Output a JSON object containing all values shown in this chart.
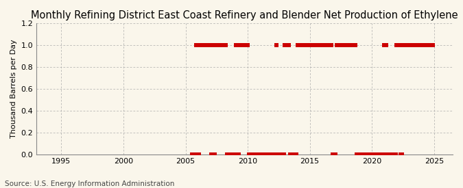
{
  "title": "Monthly Refining District East Coast Refinery and Blender Net Production of Ethylene",
  "ylabel": "Thousand Barrels per Day",
  "source": "Source: U.S. Energy Information Administration",
  "background_color": "#faf6eb",
  "line_color": "#cc0000",
  "grid_color": "#aaaaaa",
  "xlim": [
    1993.0,
    2026.5
  ],
  "ylim": [
    0.0,
    1.2
  ],
  "yticks": [
    0.0,
    0.2,
    0.4,
    0.6,
    0.8,
    1.0,
    1.2
  ],
  "xticks": [
    1995,
    2000,
    2005,
    2010,
    2015,
    2020,
    2025
  ],
  "title_fontsize": 10.5,
  "ylabel_fontsize": 8,
  "source_fontsize": 7.5,
  "tick_fontsize": 8,
  "data_points": [
    [
      2005.5,
      0
    ],
    [
      2005.58,
      0
    ],
    [
      2005.67,
      0
    ],
    [
      2005.75,
      0
    ],
    [
      2005.83,
      1
    ],
    [
      2005.92,
      1
    ],
    [
      2006.0,
      1
    ],
    [
      2006.08,
      0
    ],
    [
      2006.17,
      1
    ],
    [
      2006.25,
      1
    ],
    [
      2006.33,
      1
    ],
    [
      2006.42,
      1
    ],
    [
      2006.5,
      1
    ],
    [
      2006.58,
      1
    ],
    [
      2006.67,
      1
    ],
    [
      2006.75,
      1
    ],
    [
      2006.83,
      1
    ],
    [
      2006.92,
      1
    ],
    [
      2007.0,
      1
    ],
    [
      2007.08,
      0
    ],
    [
      2007.17,
      1
    ],
    [
      2007.25,
      1
    ],
    [
      2007.33,
      0
    ],
    [
      2007.42,
      1
    ],
    [
      2007.5,
      1
    ],
    [
      2007.58,
      1
    ],
    [
      2007.67,
      1
    ],
    [
      2007.75,
      1
    ],
    [
      2007.83,
      1
    ],
    [
      2007.92,
      1
    ],
    [
      2008.0,
      1
    ],
    [
      2008.08,
      1
    ],
    [
      2008.17,
      1
    ],
    [
      2008.25,
      1
    ],
    [
      2008.33,
      0
    ],
    [
      2008.42,
      0
    ],
    [
      2008.5,
      0
    ],
    [
      2008.58,
      0
    ],
    [
      2008.67,
      0
    ],
    [
      2008.75,
      0
    ],
    [
      2008.83,
      0
    ],
    [
      2008.92,
      0
    ],
    [
      2009.0,
      0
    ],
    [
      2009.08,
      1
    ],
    [
      2009.17,
      1
    ],
    [
      2009.25,
      0
    ],
    [
      2009.33,
      1
    ],
    [
      2009.42,
      1
    ],
    [
      2009.5,
      1
    ],
    [
      2009.58,
      1
    ],
    [
      2009.67,
      1
    ],
    [
      2009.75,
      1
    ],
    [
      2009.83,
      1
    ],
    [
      2009.92,
      1
    ],
    [
      2010.0,
      1
    ],
    [
      2010.08,
      0
    ],
    [
      2010.17,
      0
    ],
    [
      2010.25,
      0
    ],
    [
      2010.33,
      0
    ],
    [
      2010.42,
      0
    ],
    [
      2010.5,
      0
    ],
    [
      2010.58,
      0
    ],
    [
      2010.67,
      0
    ],
    [
      2010.75,
      0
    ],
    [
      2010.83,
      0
    ],
    [
      2010.92,
      0
    ],
    [
      2011.0,
      0
    ],
    [
      2011.08,
      0
    ],
    [
      2011.17,
      0
    ],
    [
      2011.25,
      0
    ],
    [
      2011.33,
      0
    ],
    [
      2011.42,
      0
    ],
    [
      2011.5,
      0
    ],
    [
      2011.58,
      0
    ],
    [
      2011.67,
      0
    ],
    [
      2011.75,
      0
    ],
    [
      2011.83,
      0
    ],
    [
      2011.92,
      0
    ],
    [
      2012.0,
      0
    ],
    [
      2012.08,
      0
    ],
    [
      2012.17,
      0
    ],
    [
      2012.25,
      0
    ],
    [
      2012.33,
      1
    ],
    [
      2012.42,
      0
    ],
    [
      2012.5,
      0
    ],
    [
      2012.58,
      0
    ],
    [
      2012.67,
      0
    ],
    [
      2012.75,
      0
    ],
    [
      2012.83,
      0
    ],
    [
      2012.92,
      0
    ],
    [
      2013.0,
      1
    ],
    [
      2013.08,
      1
    ],
    [
      2013.17,
      1
    ],
    [
      2013.25,
      1
    ],
    [
      2013.33,
      1
    ],
    [
      2013.42,
      0
    ],
    [
      2013.5,
      0
    ],
    [
      2013.58,
      0
    ],
    [
      2013.67,
      0
    ],
    [
      2013.75,
      0
    ],
    [
      2013.83,
      0
    ],
    [
      2013.92,
      0
    ],
    [
      2014.0,
      1
    ],
    [
      2014.08,
      1
    ],
    [
      2014.17,
      1
    ],
    [
      2014.25,
      1
    ],
    [
      2014.33,
      1
    ],
    [
      2014.42,
      1
    ],
    [
      2014.5,
      1
    ],
    [
      2014.58,
      1
    ],
    [
      2014.67,
      1
    ],
    [
      2014.75,
      1
    ],
    [
      2014.83,
      1
    ],
    [
      2014.92,
      1
    ],
    [
      2015.0,
      1
    ],
    [
      2015.08,
      1
    ],
    [
      2015.17,
      1
    ],
    [
      2015.25,
      1
    ],
    [
      2015.33,
      1
    ],
    [
      2015.42,
      1
    ],
    [
      2015.5,
      1
    ],
    [
      2015.58,
      1
    ],
    [
      2015.67,
      1
    ],
    [
      2015.75,
      1
    ],
    [
      2015.83,
      1
    ],
    [
      2015.92,
      1
    ],
    [
      2016.0,
      1
    ],
    [
      2016.08,
      1
    ],
    [
      2016.17,
      1
    ],
    [
      2016.25,
      1
    ],
    [
      2016.33,
      1
    ],
    [
      2016.42,
      1
    ],
    [
      2016.5,
      1
    ],
    [
      2016.58,
      1
    ],
    [
      2016.67,
      1
    ],
    [
      2016.75,
      1
    ],
    [
      2016.83,
      0
    ],
    [
      2016.92,
      0
    ],
    [
      2017.0,
      0
    ],
    [
      2017.08,
      0
    ],
    [
      2017.17,
      1
    ],
    [
      2017.25,
      1
    ],
    [
      2017.33,
      1
    ],
    [
      2017.42,
      1
    ],
    [
      2017.5,
      1
    ],
    [
      2017.58,
      1
    ],
    [
      2017.67,
      1
    ],
    [
      2017.75,
      1
    ],
    [
      2017.83,
      1
    ],
    [
      2017.92,
      1
    ],
    [
      2018.0,
      1
    ],
    [
      2018.08,
      1
    ],
    [
      2018.17,
      1
    ],
    [
      2018.25,
      1
    ],
    [
      2018.33,
      1
    ],
    [
      2018.42,
      1
    ],
    [
      2018.5,
      1
    ],
    [
      2018.58,
      1
    ],
    [
      2018.67,
      1
    ],
    [
      2018.75,
      0
    ],
    [
      2018.83,
      0
    ],
    [
      2018.92,
      0
    ],
    [
      2019.0,
      0
    ],
    [
      2019.08,
      0
    ],
    [
      2019.17,
      0
    ],
    [
      2019.25,
      0
    ],
    [
      2019.33,
      0
    ],
    [
      2019.42,
      0
    ],
    [
      2019.5,
      0
    ],
    [
      2019.58,
      0
    ],
    [
      2019.67,
      0
    ],
    [
      2019.75,
      0
    ],
    [
      2019.83,
      0
    ],
    [
      2019.92,
      0
    ],
    [
      2020.0,
      0
    ],
    [
      2020.08,
      0
    ],
    [
      2020.17,
      0
    ],
    [
      2020.25,
      0
    ],
    [
      2020.33,
      0
    ],
    [
      2020.42,
      0
    ],
    [
      2020.5,
      0
    ],
    [
      2020.58,
      0
    ],
    [
      2020.67,
      0
    ],
    [
      2020.75,
      0
    ],
    [
      2020.83,
      0
    ],
    [
      2020.92,
      0
    ],
    [
      2021.0,
      1
    ],
    [
      2021.08,
      1
    ],
    [
      2021.17,
      1
    ],
    [
      2021.25,
      0
    ],
    [
      2021.33,
      0
    ],
    [
      2021.42,
      0
    ],
    [
      2021.5,
      0
    ],
    [
      2021.58,
      0
    ],
    [
      2021.67,
      0
    ],
    [
      2021.75,
      0
    ],
    [
      2021.83,
      0
    ],
    [
      2021.92,
      0
    ],
    [
      2022.0,
      1
    ],
    [
      2022.08,
      1
    ],
    [
      2022.17,
      1
    ],
    [
      2022.25,
      1
    ],
    [
      2022.33,
      0
    ],
    [
      2022.42,
      0
    ],
    [
      2022.5,
      1
    ],
    [
      2022.58,
      1
    ],
    [
      2022.67,
      1
    ],
    [
      2022.75,
      1
    ],
    [
      2022.83,
      1
    ],
    [
      2022.92,
      1
    ],
    [
      2023.0,
      1
    ],
    [
      2023.08,
      1
    ],
    [
      2023.17,
      1
    ],
    [
      2023.25,
      1
    ],
    [
      2023.33,
      1
    ],
    [
      2023.42,
      1
    ],
    [
      2023.5,
      1
    ],
    [
      2023.58,
      1
    ],
    [
      2023.67,
      1
    ],
    [
      2023.75,
      1
    ],
    [
      2023.83,
      1
    ],
    [
      2023.92,
      1
    ],
    [
      2024.0,
      1
    ],
    [
      2024.08,
      1
    ],
    [
      2024.17,
      1
    ],
    [
      2024.25,
      1
    ],
    [
      2024.33,
      1
    ],
    [
      2024.42,
      1
    ],
    [
      2024.5,
      1
    ],
    [
      2024.58,
      1
    ],
    [
      2024.67,
      1
    ],
    [
      2024.75,
      1
    ],
    [
      2024.83,
      1
    ],
    [
      2024.92,
      1
    ]
  ]
}
